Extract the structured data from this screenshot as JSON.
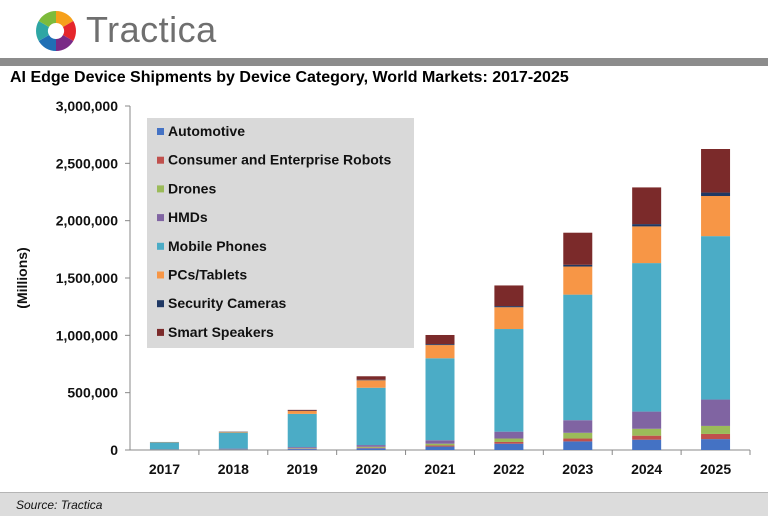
{
  "brand": {
    "name": "Tractica"
  },
  "colors": {
    "header_rule": "#8c8c8c",
    "source_bar": "#dcdcdc",
    "legend_bg": "#d9d9d9"
  },
  "chart_data": {
    "type": "bar",
    "stacked": true,
    "title": "AI Edge Device Shipments by Device Category, World Markets: 2017-2025",
    "xlabel": "",
    "ylabel": "(Millions)",
    "ylim": [
      0,
      3000000
    ],
    "yticks": [
      0,
      500000,
      1000000,
      1500000,
      2000000,
      2500000,
      3000000
    ],
    "ytick_labels": [
      "0",
      "500,000",
      "1,000,000",
      "1,500,000",
      "2,000,000",
      "2,500,000",
      "3,000,000"
    ],
    "categories": [
      "2017",
      "2018",
      "2019",
      "2020",
      "2021",
      "2022",
      "2023",
      "2024",
      "2025"
    ],
    "legend_position": "top-left",
    "series": [
      {
        "name": "Automotive",
        "color": "#4472c4",
        "values": [
          2000,
          4000,
          8000,
          15000,
          30000,
          55000,
          75000,
          90000,
          95000
        ]
      },
      {
        "name": "Consumer and Enterprise Robots",
        "color": "#c0504d",
        "values": [
          1000,
          2000,
          3000,
          5000,
          10000,
          15000,
          25000,
          35000,
          45000
        ]
      },
      {
        "name": "Drones",
        "color": "#9bbb59",
        "values": [
          1000,
          2000,
          4000,
          8000,
          15000,
          30000,
          50000,
          60000,
          70000
        ]
      },
      {
        "name": "HMDs",
        "color": "#8064a2",
        "values": [
          2000,
          4000,
          10000,
          15000,
          30000,
          60000,
          110000,
          150000,
          230000
        ]
      },
      {
        "name": "Mobile Phones",
        "color": "#4bacc6",
        "values": [
          60000,
          140000,
          290000,
          500000,
          715000,
          895000,
          1095000,
          1295000,
          1425000
        ]
      },
      {
        "name": "PCs/Tablets",
        "color": "#f79646",
        "values": [
          3000,
          6000,
          25000,
          65000,
          115000,
          190000,
          245000,
          320000,
          350000
        ]
      },
      {
        "name": "Security Cameras",
        "color": "#1f3864",
        "values": [
          1000,
          2000,
          3000,
          5000,
          8000,
          10000,
          15000,
          20000,
          30000
        ]
      },
      {
        "name": "Smart Speakers",
        "color": "#7b2a2a",
        "values": [
          0,
          1000,
          7000,
          30000,
          80000,
          180000,
          280000,
          320000,
          380000
        ]
      }
    ]
  },
  "footer": {
    "source": "Source: Tractica"
  }
}
